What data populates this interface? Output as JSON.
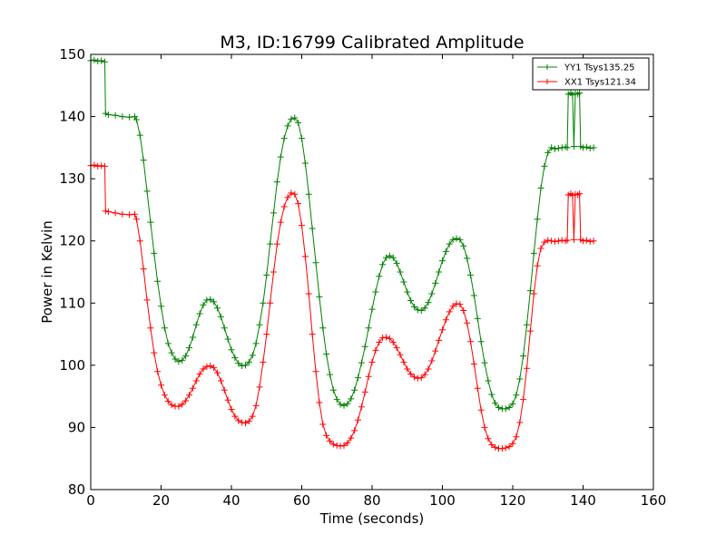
{
  "chart_data": {
    "type": "line",
    "title": "M3, ID:16799 Calibrated Amplitude",
    "xlabel": "Time (seconds)",
    "ylabel": "Power in Kelvin",
    "xlim": [
      0,
      160
    ],
    "ylim": [
      80,
      150
    ],
    "xticks": [
      0,
      20,
      40,
      60,
      80,
      100,
      120,
      140,
      160
    ],
    "yticks": [
      80,
      90,
      100,
      110,
      120,
      130,
      140,
      150
    ],
    "legend_position": "top-right",
    "series": [
      {
        "name": "YY1 Tsys135.25",
        "color": "#008000",
        "marker": "+",
        "points": [
          [
            0,
            149
          ],
          [
            1,
            149.1
          ],
          [
            2,
            148.9
          ],
          [
            3,
            149
          ],
          [
            4,
            148.8
          ],
          [
            4.2,
            140.5
          ],
          [
            5,
            140.3
          ],
          [
            7,
            140.2
          ],
          [
            9,
            140
          ],
          [
            11,
            139.9
          ],
          [
            12.5,
            140
          ],
          [
            13,
            139.5
          ],
          [
            14,
            137
          ],
          [
            15,
            133
          ],
          [
            16,
            128
          ],
          [
            17,
            123
          ],
          [
            18,
            118
          ],
          [
            19,
            113.5
          ],
          [
            20,
            109.5
          ],
          [
            21,
            106
          ],
          [
            22,
            103.5
          ],
          [
            23,
            102
          ],
          [
            24,
            101
          ],
          [
            25,
            100.6
          ],
          [
            26,
            100.8
          ],
          [
            27,
            101.5
          ],
          [
            28,
            102.8
          ],
          [
            29,
            104.5
          ],
          [
            30,
            106.5
          ],
          [
            31,
            108.3
          ],
          [
            32,
            109.7
          ],
          [
            33,
            110.5
          ],
          [
            34,
            110.6
          ],
          [
            35,
            110.2
          ],
          [
            36,
            109.2
          ],
          [
            37,
            107.8
          ],
          [
            38,
            106
          ],
          [
            39,
            104.2
          ],
          [
            40,
            102.5
          ],
          [
            41,
            101.2
          ],
          [
            42,
            100.3
          ],
          [
            43,
            99.9
          ],
          [
            44,
            100
          ],
          [
            45,
            100.5
          ],
          [
            46,
            101.6
          ],
          [
            47,
            103.5
          ],
          [
            48,
            106.5
          ],
          [
            49,
            110
          ],
          [
            50,
            114.5
          ],
          [
            51,
            119.5
          ],
          [
            52,
            124.5
          ],
          [
            53,
            129.5
          ],
          [
            54,
            133.5
          ],
          [
            55,
            136.5
          ],
          [
            56,
            138.5
          ],
          [
            57,
            139.6
          ],
          [
            58,
            139.8
          ],
          [
            59,
            139
          ],
          [
            60,
            136.5
          ],
          [
            61,
            132.5
          ],
          [
            62,
            127.5
          ],
          [
            63,
            122
          ],
          [
            64,
            116.5
          ],
          [
            65,
            111
          ],
          [
            66,
            106
          ],
          [
            67,
            101.8
          ],
          [
            68,
            98.5
          ],
          [
            69,
            96
          ],
          [
            70,
            94.5
          ],
          [
            71,
            93.7
          ],
          [
            72,
            93.5
          ],
          [
            73,
            93.8
          ],
          [
            74,
            94.6
          ],
          [
            75,
            96
          ],
          [
            76,
            98
          ],
          [
            77,
            100.4
          ],
          [
            78,
            103
          ],
          [
            79,
            106
          ],
          [
            80,
            109
          ],
          [
            81,
            111.8
          ],
          [
            82,
            114.3
          ],
          [
            83,
            116.2
          ],
          [
            84,
            117.3
          ],
          [
            85,
            117.6
          ],
          [
            86,
            117.3
          ],
          [
            87,
            116.4
          ],
          [
            88,
            115
          ],
          [
            89,
            113.4
          ],
          [
            90,
            111.8
          ],
          [
            91,
            110.4
          ],
          [
            92,
            109.4
          ],
          [
            93,
            108.9
          ],
          [
            94,
            108.8
          ],
          [
            95,
            109.2
          ],
          [
            96,
            110.1
          ],
          [
            97,
            111.5
          ],
          [
            98,
            113.2
          ],
          [
            99,
            115
          ],
          [
            100,
            116.8
          ],
          [
            101,
            118.3
          ],
          [
            102,
            119.5
          ],
          [
            103,
            120.2
          ],
          [
            104,
            120.4
          ],
          [
            105,
            120.2
          ],
          [
            106,
            119.2
          ],
          [
            107,
            117.2
          ],
          [
            108,
            114.5
          ],
          [
            109,
            111.2
          ],
          [
            110,
            107.5
          ],
          [
            111,
            103.8
          ],
          [
            112,
            100.4
          ],
          [
            113,
            97.5
          ],
          [
            114,
            95.3
          ],
          [
            115,
            93.9
          ],
          [
            116,
            93.2
          ],
          [
            117,
            93
          ],
          [
            118,
            93
          ],
          [
            119,
            93.2
          ],
          [
            120,
            93.8
          ],
          [
            121,
            95.2
          ],
          [
            122,
            97.8
          ],
          [
            123,
            101.5
          ],
          [
            124,
            106.5
          ],
          [
            125,
            112
          ],
          [
            126,
            118
          ],
          [
            127,
            123.5
          ],
          [
            128,
            128.5
          ],
          [
            129,
            132
          ],
          [
            130,
            134.2
          ],
          [
            131,
            135
          ],
          [
            132,
            134.8
          ],
          [
            133,
            134.9
          ],
          [
            134,
            135
          ],
          [
            135,
            135.1
          ],
          [
            135.5,
            135
          ],
          [
            135.8,
            143.6
          ],
          [
            136.5,
            143.8
          ],
          [
            137,
            143.5
          ],
          [
            137.4,
            135.2
          ],
          [
            137.8,
            143.7
          ],
          [
            138.5,
            143.6
          ],
          [
            139,
            143.8
          ],
          [
            139.3,
            135.2
          ],
          [
            140,
            135
          ],
          [
            141,
            135.1
          ],
          [
            142,
            134.9
          ],
          [
            143,
            135
          ]
        ]
      },
      {
        "name": "XX1 Tsys121.34",
        "color": "#ff0000",
        "marker": "+",
        "points": [
          [
            0,
            132.1
          ],
          [
            1,
            132.2
          ],
          [
            2,
            132
          ],
          [
            3,
            132.1
          ],
          [
            4,
            132
          ],
          [
            4.2,
            124.8
          ],
          [
            5,
            124.7
          ],
          [
            7,
            124.5
          ],
          [
            9,
            124.3
          ],
          [
            11,
            124.2
          ],
          [
            12.5,
            124.3
          ],
          [
            13,
            123.5
          ],
          [
            14,
            120
          ],
          [
            15,
            115.5
          ],
          [
            16,
            110.5
          ],
          [
            17,
            106
          ],
          [
            18,
            102
          ],
          [
            19,
            99
          ],
          [
            20,
            96.8
          ],
          [
            21,
            95.2
          ],
          [
            22,
            94.2
          ],
          [
            23,
            93.6
          ],
          [
            24,
            93.4
          ],
          [
            25,
            93.4
          ],
          [
            26,
            93.7
          ],
          [
            27,
            94.3
          ],
          [
            28,
            95.2
          ],
          [
            29,
            96.3
          ],
          [
            30,
            97.5
          ],
          [
            31,
            98.6
          ],
          [
            32,
            99.4
          ],
          [
            33,
            99.8
          ],
          [
            34,
            99.9
          ],
          [
            35,
            99.6
          ],
          [
            36,
            98.8
          ],
          [
            37,
            97.5
          ],
          [
            38,
            96
          ],
          [
            39,
            94.4
          ],
          [
            40,
            92.9
          ],
          [
            41,
            91.8
          ],
          [
            42,
            91.1
          ],
          [
            43,
            90.8
          ],
          [
            44,
            90.7
          ],
          [
            45,
            91
          ],
          [
            46,
            91.8
          ],
          [
            47,
            93.5
          ],
          [
            48,
            96.5
          ],
          [
            49,
            100.5
          ],
          [
            50,
            105
          ],
          [
            51,
            110
          ],
          [
            52,
            115
          ],
          [
            53,
            119.5
          ],
          [
            54,
            123
          ],
          [
            55,
            125.5
          ],
          [
            56,
            127
          ],
          [
            57,
            127.7
          ],
          [
            58,
            127.5
          ],
          [
            59,
            126
          ],
          [
            60,
            122.5
          ],
          [
            61,
            117.5
          ],
          [
            62,
            111.5
          ],
          [
            63,
            105
          ],
          [
            64,
            99
          ],
          [
            65,
            94
          ],
          [
            66,
            90.5
          ],
          [
            67,
            88.7
          ],
          [
            68,
            87.8
          ],
          [
            69,
            87.3
          ],
          [
            70,
            87.1
          ],
          [
            71,
            87
          ],
          [
            72,
            87.1
          ],
          [
            73,
            87.5
          ],
          [
            74,
            88.3
          ],
          [
            75,
            89.5
          ],
          [
            76,
            91.2
          ],
          [
            77,
            93.3
          ],
          [
            78,
            95.7
          ],
          [
            79,
            98.2
          ],
          [
            80,
            100.5
          ],
          [
            81,
            102.4
          ],
          [
            82,
            103.7
          ],
          [
            83,
            104.4
          ],
          [
            84,
            104.5
          ],
          [
            85,
            104.3
          ],
          [
            86,
            103.7
          ],
          [
            87,
            102.8
          ],
          [
            88,
            101.7
          ],
          [
            89,
            100.5
          ],
          [
            90,
            99.4
          ],
          [
            91,
            98.6
          ],
          [
            92,
            98.1
          ],
          [
            93,
            97.9
          ],
          [
            94,
            98
          ],
          [
            95,
            98.5
          ],
          [
            96,
            99.4
          ],
          [
            97,
            100.7
          ],
          [
            98,
            102.3
          ],
          [
            99,
            104
          ],
          [
            100,
            105.7
          ],
          [
            101,
            107.3
          ],
          [
            102,
            108.6
          ],
          [
            103,
            109.5
          ],
          [
            104,
            109.9
          ],
          [
            105,
            109.8
          ],
          [
            106,
            108.8
          ],
          [
            107,
            106.8
          ],
          [
            108,
            103.8
          ],
          [
            109,
            100.2
          ],
          [
            110,
            96.3
          ],
          [
            111,
            92.8
          ],
          [
            112,
            90
          ],
          [
            113,
            88.2
          ],
          [
            114,
            87.2
          ],
          [
            115,
            86.8
          ],
          [
            116,
            86.6
          ],
          [
            117,
            86.6
          ],
          [
            118,
            86.7
          ],
          [
            119,
            86.9
          ],
          [
            120,
            87.4
          ],
          [
            121,
            88.5
          ],
          [
            122,
            90.8
          ],
          [
            123,
            94.5
          ],
          [
            124,
            99.5
          ],
          [
            125,
            105.5
          ],
          [
            126,
            111.5
          ],
          [
            127,
            116
          ],
          [
            128,
            118.8
          ],
          [
            129,
            119.8
          ],
          [
            130,
            120.1
          ],
          [
            131,
            120
          ],
          [
            132,
            119.9
          ],
          [
            133,
            120
          ],
          [
            134,
            120.1
          ],
          [
            135,
            120
          ],
          [
            135.5,
            120.1
          ],
          [
            135.8,
            127.4
          ],
          [
            136.5,
            127.6
          ],
          [
            137,
            127.3
          ],
          [
            137.4,
            120.2
          ],
          [
            137.8,
            127.5
          ],
          [
            138.5,
            127.4
          ],
          [
            139,
            127.6
          ],
          [
            139.3,
            120.2
          ],
          [
            140,
            120
          ],
          [
            141,
            120.1
          ],
          [
            142,
            119.9
          ],
          [
            143,
            120
          ]
        ]
      }
    ]
  }
}
